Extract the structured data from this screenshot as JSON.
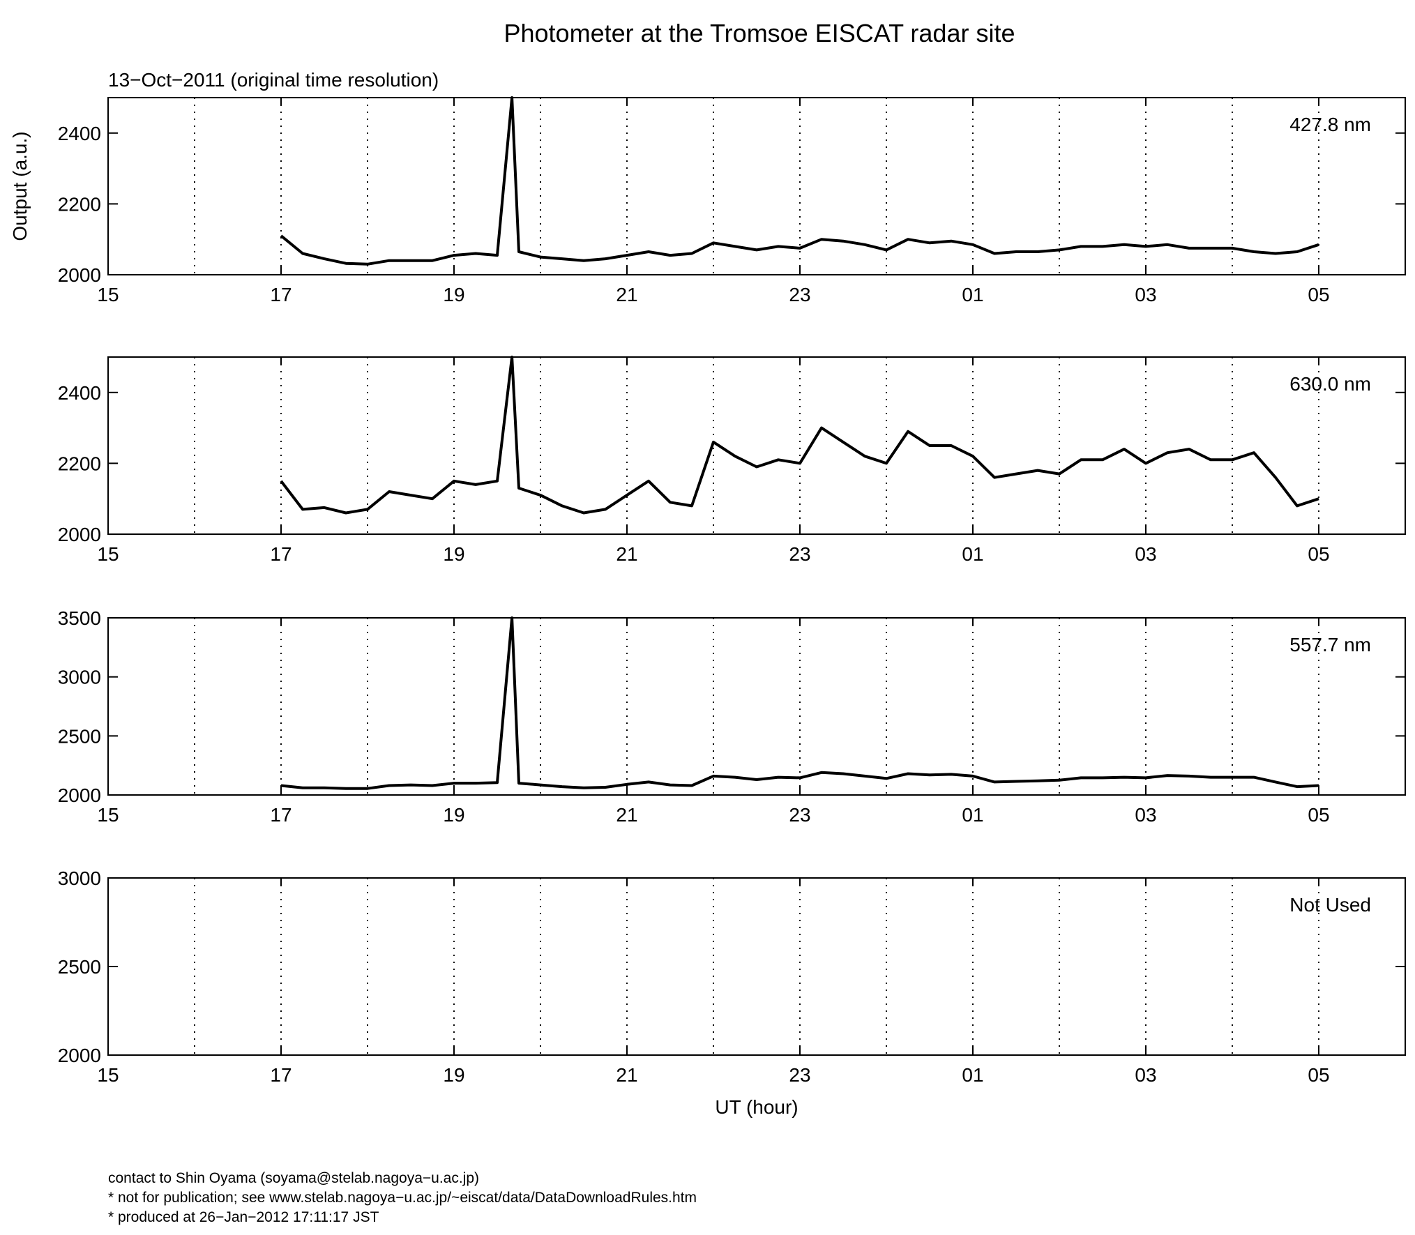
{
  "title": "Photometer at the Tromsoe EISCAT radar site",
  "subtitle": "13−Oct−2011 (original time resolution)",
  "footer": [
    "contact to Shin Oyama (soyama@stelab.nagoya−u.ac.jp)",
    "* not for publication; see www.stelab.nagoya−u.ac.jp/~eiscat/data/DataDownloadRules.htm",
    "* produced at 26−Jan−2012 17:11:17 JST"
  ],
  "chart_data": [
    {
      "type": "line",
      "annotation": "427.8 nm",
      "y_label": "Output (a.u.)",
      "xlim": [
        15,
        30
      ],
      "xticks": [
        15,
        17,
        19,
        21,
        23,
        {
          "value": 25,
          "label": "01"
        },
        {
          "value": 27,
          "label": "03"
        },
        {
          "value": 29,
          "label": "05"
        }
      ],
      "xminorticks": [
        16,
        18,
        20,
        22,
        24,
        26,
        28
      ],
      "grid": "dotted",
      "ylim": [
        2000,
        2500
      ],
      "yticks": [
        2000,
        2200,
        2400
      ],
      "x": [
        17,
        17.25,
        17.5,
        17.75,
        18,
        18.25,
        18.5,
        18.75,
        19,
        19.25,
        19.5,
        19.67,
        19.75,
        20,
        20.25,
        20.5,
        20.75,
        21,
        21.25,
        21.5,
        21.75,
        22,
        22.25,
        22.5,
        22.75,
        23,
        23.25,
        23.5,
        23.75,
        24,
        24.25,
        24.5,
        24.75,
        25,
        25.25,
        25.5,
        25.75,
        26,
        26.25,
        26.5,
        26.75,
        27,
        27.25,
        27.5,
        27.75,
        28,
        28.25,
        28.5,
        28.75,
        29
      ],
      "series": [
        {
          "color": "#000000",
          "values": [
            2110,
            2060,
            2045,
            2032,
            2030,
            2040,
            2040,
            2040,
            2055,
            2060,
            2055,
            2500,
            2065,
            2050,
            2045,
            2040,
            2045,
            2055,
            2065,
            2055,
            2060,
            2090,
            2080,
            2070,
            2080,
            2075,
            2100,
            2095,
            2085,
            2070,
            2100,
            2090,
            2095,
            2085,
            2060,
            2065,
            2065,
            2070,
            2080,
            2080,
            2085,
            2080,
            2085,
            2075,
            2075,
            2075,
            2065,
            2060,
            2065,
            2085
          ]
        }
      ]
    },
    {
      "type": "line",
      "annotation": "630.0 nm",
      "xlim": [
        15,
        30
      ],
      "xticks": [
        15,
        17,
        19,
        21,
        23,
        {
          "value": 25,
          "label": "01"
        },
        {
          "value": 27,
          "label": "03"
        },
        {
          "value": 29,
          "label": "05"
        }
      ],
      "xminorticks": [
        16,
        18,
        20,
        22,
        24,
        26,
        28
      ],
      "grid": "dotted",
      "ylim": [
        2000,
        2500
      ],
      "yticks": [
        2000,
        2200,
        2400
      ],
      "x": [
        17,
        17.25,
        17.5,
        17.75,
        18,
        18.25,
        18.5,
        18.75,
        19,
        19.25,
        19.5,
        19.67,
        19.75,
        20,
        20.25,
        20.5,
        20.75,
        21,
        21.25,
        21.5,
        21.75,
        22,
        22.25,
        22.5,
        22.75,
        23,
        23.25,
        23.5,
        23.75,
        24,
        24.25,
        24.5,
        24.75,
        25,
        25.25,
        25.5,
        25.75,
        26,
        26.25,
        26.5,
        26.75,
        27,
        27.25,
        27.5,
        27.75,
        28,
        28.25,
        28.5,
        28.75,
        29
      ],
      "series": [
        {
          "color": "#000000",
          "values": [
            2150,
            2070,
            2075,
            2060,
            2070,
            2120,
            2110,
            2100,
            2150,
            2140,
            2150,
            2500,
            2130,
            2110,
            2080,
            2060,
            2070,
            2110,
            2150,
            2090,
            2080,
            2260,
            2220,
            2190,
            2210,
            2200,
            2300,
            2260,
            2220,
            2200,
            2290,
            2250,
            2250,
            2220,
            2160,
            2170,
            2180,
            2170,
            2210,
            2210,
            2240,
            2200,
            2230,
            2240,
            2210,
            2210,
            2230,
            2160,
            2080,
            2100
          ]
        }
      ]
    },
    {
      "type": "line",
      "annotation": "557.7 nm",
      "xlim": [
        15,
        30
      ],
      "xticks": [
        15,
        17,
        19,
        21,
        23,
        {
          "value": 25,
          "label": "01"
        },
        {
          "value": 27,
          "label": "03"
        },
        {
          "value": 29,
          "label": "05"
        }
      ],
      "xminorticks": [
        16,
        18,
        20,
        22,
        24,
        26,
        28
      ],
      "grid": "dotted",
      "ylim": [
        2000,
        3500
      ],
      "yticks": [
        2000,
        2500,
        3000,
        3500
      ],
      "x": [
        17,
        17.25,
        17.5,
        17.75,
        18,
        18.25,
        18.5,
        18.75,
        19,
        19.25,
        19.5,
        19.67,
        19.75,
        20,
        20.25,
        20.5,
        20.75,
        21,
        21.25,
        21.5,
        21.75,
        22,
        22.25,
        22.5,
        22.75,
        23,
        23.25,
        23.5,
        23.75,
        24,
        24.25,
        24.5,
        24.75,
        25,
        25.25,
        25.5,
        25.75,
        26,
        26.25,
        26.5,
        26.75,
        27,
        27.25,
        27.5,
        27.75,
        28,
        28.25,
        28.5,
        28.75,
        29
      ],
      "series": [
        {
          "color": "#000000",
          "values": [
            2080,
            2060,
            2060,
            2055,
            2055,
            2080,
            2085,
            2080,
            2100,
            2100,
            2105,
            3500,
            2100,
            2085,
            2070,
            2060,
            2065,
            2090,
            2110,
            2085,
            2080,
            2160,
            2150,
            2130,
            2150,
            2145,
            2190,
            2180,
            2160,
            2140,
            2180,
            2170,
            2175,
            2160,
            2110,
            2115,
            2120,
            2125,
            2145,
            2145,
            2150,
            2145,
            2165,
            2160,
            2150,
            2150,
            2150,
            2110,
            2070,
            2080
          ]
        }
      ]
    },
    {
      "type": "line",
      "annotation": "Not Used",
      "x_label": "UT (hour)",
      "xlim": [
        15,
        30
      ],
      "xticks": [
        15,
        17,
        19,
        21,
        23,
        {
          "value": 25,
          "label": "01"
        },
        {
          "value": 27,
          "label": "03"
        },
        {
          "value": 29,
          "label": "05"
        }
      ],
      "xminorticks": [
        16,
        18,
        20,
        22,
        24,
        26,
        28
      ],
      "grid": "dotted",
      "ylim": [
        2000,
        3000
      ],
      "yticks": [
        2000,
        2500,
        3000
      ],
      "x": [],
      "series": []
    }
  ]
}
